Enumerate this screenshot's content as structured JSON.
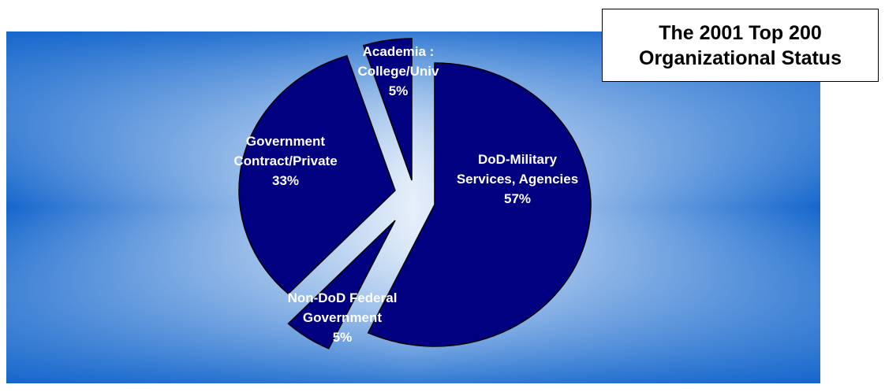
{
  "chart_data": {
    "type": "pie",
    "title_lines": [
      "The 2001  Top 200",
      "Organizational Status"
    ],
    "slices": [
      {
        "label_lines": [
          "DoD-Military",
          "Services, Agencies",
          "57%"
        ],
        "value": 57
      },
      {
        "label_lines": [
          "Non-DoD Federal",
          "Government",
          "5%"
        ],
        "value": 5
      },
      {
        "label_lines": [
          "Government",
          "Contract/Private",
          "33%"
        ],
        "value": 33
      },
      {
        "label_lines": [
          "Academia :",
          "College/Univ",
          "5%"
        ],
        "value": 5
      }
    ],
    "exploded": true,
    "legend": "none"
  },
  "colors": {
    "slice_fill": "#000080",
    "slice_stroke": "#000000",
    "background_edge": "#1466cc",
    "background_center": "#e6effa",
    "label_text": "#ffffff"
  }
}
